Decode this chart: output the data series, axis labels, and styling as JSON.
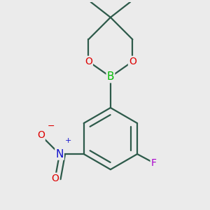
{
  "background_color": "#ebebeb",
  "bond_color": "#2d5a4a",
  "bond_width": 1.6,
  "atom_colors": {
    "B": "#00bb00",
    "O": "#dd0000",
    "N": "#1111cc",
    "F": "#aa00cc",
    "C": "#2d5a4a"
  },
  "fig_width": 3.0,
  "fig_height": 3.0,
  "dpi": 100,
  "afs": 10
}
